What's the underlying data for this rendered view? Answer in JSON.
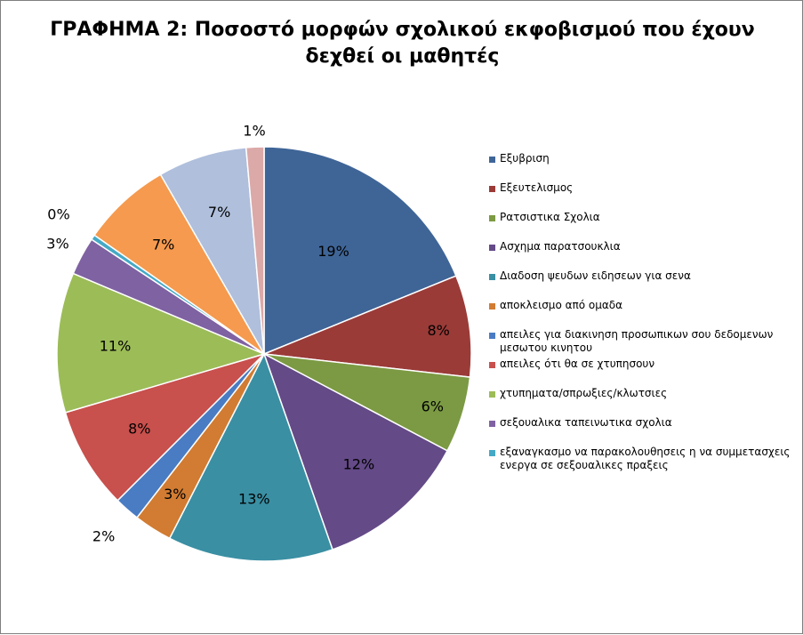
{
  "chart_data": {
    "type": "pie",
    "title_lines": [
      "ΓΡΑΦΗΜΑ 2: Ποσοστό μορφών σχολικού εκφοβισμού που έχουν",
      "δεχθεί οι μαθητές"
    ],
    "legend_position": "right",
    "slices": [
      {
        "label": "Εξυβριση",
        "value": 19,
        "display": "19%",
        "color": "#3f6597"
      },
      {
        "label": "Εξευτελισμος",
        "value": 8,
        "display": "8%",
        "color": "#9a3b38"
      },
      {
        "label": "Ρατσιστικα Σχολια",
        "value": 6,
        "display": "6%",
        "color": "#7b9a43"
      },
      {
        "label": "Ασχημα παρατσουκλια",
        "value": 12,
        "display": "12%",
        "color": "#644a87"
      },
      {
        "label": "Διαδοση ψευδων ειδησεων για σενα",
        "value": 13,
        "display": "13%",
        "color": "#3a8fa3"
      },
      {
        "label": "αποκλεισμο από ομαδα",
        "value": 3,
        "display": "3%",
        "color": "#d17c32"
      },
      {
        "label": "απειλες για διακινηση προσωπικων σου δεδομενων μεσωτου κινητου",
        "value": 2,
        "display": "2%",
        "color": "#4a7cc4"
      },
      {
        "label": "απειλες ότι θα σε χτυπησουν",
        "value": 8,
        "display": "8%",
        "color": "#c8504d"
      },
      {
        "label": "χτυπηματα/σπρωξιες/κλωτσιες",
        "value": 11,
        "display": "11%",
        "color": "#9cbc58"
      },
      {
        "label": "σεξουαλικα ταπεινωτικα σχολια",
        "value": 3,
        "display": "3%",
        "color": "#7f62a2"
      },
      {
        "label": "εξαναγκασμο να παρακολουθησεις η να συμμετασχεις ενεργα σε σεξουαλικες πραξεις",
        "value": 0.4,
        "display": "0%",
        "color": "#45a9c6"
      },
      {
        "label": "",
        "value": 7,
        "display": "7%",
        "color": "#f59a4e"
      },
      {
        "label": "",
        "value": 7,
        "display": "7%",
        "color": "#afbfdc"
      },
      {
        "label": "",
        "value": 1.4,
        "display": "1%",
        "color": "#dba9a8"
      }
    ]
  }
}
